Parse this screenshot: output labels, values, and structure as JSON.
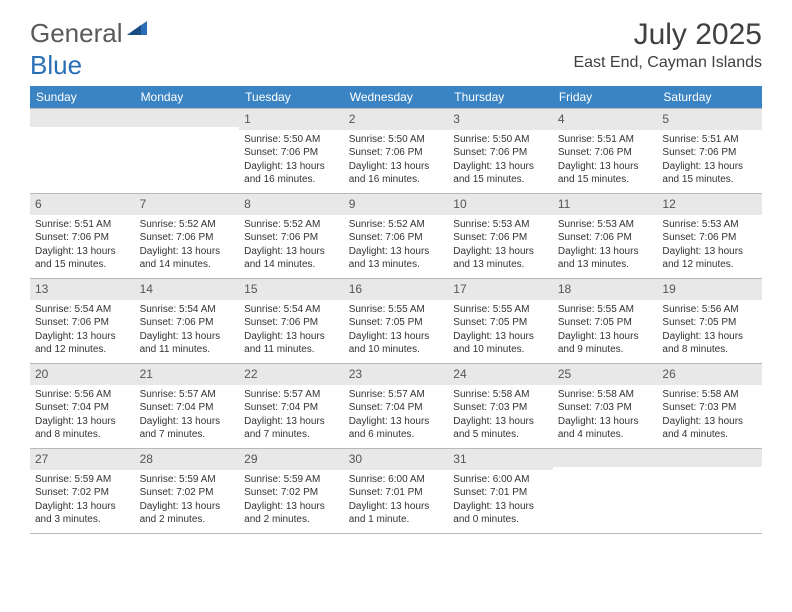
{
  "logo": {
    "text1": "General",
    "text2": "Blue"
  },
  "title": "July 2025",
  "location": "East End, Cayman Islands",
  "colors": {
    "header_bg": "#3b84c4",
    "header_text": "#ffffff",
    "daynum_bg": "#e8e8e8",
    "border": "#b8b8b8",
    "body_text": "#333333",
    "title_text": "#404040",
    "logo_gray": "#5a5a5a",
    "logo_blue": "#2a6fb5"
  },
  "day_headers": [
    "Sunday",
    "Monday",
    "Tuesday",
    "Wednesday",
    "Thursday",
    "Friday",
    "Saturday"
  ],
  "weeks": [
    [
      null,
      null,
      {
        "n": "1",
        "sr": "5:50 AM",
        "ss": "7:06 PM",
        "dl1": "13 hours",
        "dl2": "and 16 minutes."
      },
      {
        "n": "2",
        "sr": "5:50 AM",
        "ss": "7:06 PM",
        "dl1": "13 hours",
        "dl2": "and 16 minutes."
      },
      {
        "n": "3",
        "sr": "5:50 AM",
        "ss": "7:06 PM",
        "dl1": "13 hours",
        "dl2": "and 15 minutes."
      },
      {
        "n": "4",
        "sr": "5:51 AM",
        "ss": "7:06 PM",
        "dl1": "13 hours",
        "dl2": "and 15 minutes."
      },
      {
        "n": "5",
        "sr": "5:51 AM",
        "ss": "7:06 PM",
        "dl1": "13 hours",
        "dl2": "and 15 minutes."
      }
    ],
    [
      {
        "n": "6",
        "sr": "5:51 AM",
        "ss": "7:06 PM",
        "dl1": "13 hours",
        "dl2": "and 15 minutes."
      },
      {
        "n": "7",
        "sr": "5:52 AM",
        "ss": "7:06 PM",
        "dl1": "13 hours",
        "dl2": "and 14 minutes."
      },
      {
        "n": "8",
        "sr": "5:52 AM",
        "ss": "7:06 PM",
        "dl1": "13 hours",
        "dl2": "and 14 minutes."
      },
      {
        "n": "9",
        "sr": "5:52 AM",
        "ss": "7:06 PM",
        "dl1": "13 hours",
        "dl2": "and 13 minutes."
      },
      {
        "n": "10",
        "sr": "5:53 AM",
        "ss": "7:06 PM",
        "dl1": "13 hours",
        "dl2": "and 13 minutes."
      },
      {
        "n": "11",
        "sr": "5:53 AM",
        "ss": "7:06 PM",
        "dl1": "13 hours",
        "dl2": "and 13 minutes."
      },
      {
        "n": "12",
        "sr": "5:53 AM",
        "ss": "7:06 PM",
        "dl1": "13 hours",
        "dl2": "and 12 minutes."
      }
    ],
    [
      {
        "n": "13",
        "sr": "5:54 AM",
        "ss": "7:06 PM",
        "dl1": "13 hours",
        "dl2": "and 12 minutes."
      },
      {
        "n": "14",
        "sr": "5:54 AM",
        "ss": "7:06 PM",
        "dl1": "13 hours",
        "dl2": "and 11 minutes."
      },
      {
        "n": "15",
        "sr": "5:54 AM",
        "ss": "7:06 PM",
        "dl1": "13 hours",
        "dl2": "and 11 minutes."
      },
      {
        "n": "16",
        "sr": "5:55 AM",
        "ss": "7:05 PM",
        "dl1": "13 hours",
        "dl2": "and 10 minutes."
      },
      {
        "n": "17",
        "sr": "5:55 AM",
        "ss": "7:05 PM",
        "dl1": "13 hours",
        "dl2": "and 10 minutes."
      },
      {
        "n": "18",
        "sr": "5:55 AM",
        "ss": "7:05 PM",
        "dl1": "13 hours",
        "dl2": "and 9 minutes."
      },
      {
        "n": "19",
        "sr": "5:56 AM",
        "ss": "7:05 PM",
        "dl1": "13 hours",
        "dl2": "and 8 minutes."
      }
    ],
    [
      {
        "n": "20",
        "sr": "5:56 AM",
        "ss": "7:04 PM",
        "dl1": "13 hours",
        "dl2": "and 8 minutes."
      },
      {
        "n": "21",
        "sr": "5:57 AM",
        "ss": "7:04 PM",
        "dl1": "13 hours",
        "dl2": "and 7 minutes."
      },
      {
        "n": "22",
        "sr": "5:57 AM",
        "ss": "7:04 PM",
        "dl1": "13 hours",
        "dl2": "and 7 minutes."
      },
      {
        "n": "23",
        "sr": "5:57 AM",
        "ss": "7:04 PM",
        "dl1": "13 hours",
        "dl2": "and 6 minutes."
      },
      {
        "n": "24",
        "sr": "5:58 AM",
        "ss": "7:03 PM",
        "dl1": "13 hours",
        "dl2": "and 5 minutes."
      },
      {
        "n": "25",
        "sr": "5:58 AM",
        "ss": "7:03 PM",
        "dl1": "13 hours",
        "dl2": "and 4 minutes."
      },
      {
        "n": "26",
        "sr": "5:58 AM",
        "ss": "7:03 PM",
        "dl1": "13 hours",
        "dl2": "and 4 minutes."
      }
    ],
    [
      {
        "n": "27",
        "sr": "5:59 AM",
        "ss": "7:02 PM",
        "dl1": "13 hours",
        "dl2": "and 3 minutes."
      },
      {
        "n": "28",
        "sr": "5:59 AM",
        "ss": "7:02 PM",
        "dl1": "13 hours",
        "dl2": "and 2 minutes."
      },
      {
        "n": "29",
        "sr": "5:59 AM",
        "ss": "7:02 PM",
        "dl1": "13 hours",
        "dl2": "and 2 minutes."
      },
      {
        "n": "30",
        "sr": "6:00 AM",
        "ss": "7:01 PM",
        "dl1": "13 hours",
        "dl2": "and 1 minute."
      },
      {
        "n": "31",
        "sr": "6:00 AM",
        "ss": "7:01 PM",
        "dl1": "13 hours",
        "dl2": "and 0 minutes."
      },
      null,
      null
    ]
  ],
  "labels": {
    "sunrise": "Sunrise: ",
    "sunset": "Sunset: ",
    "daylight": "Daylight: "
  }
}
